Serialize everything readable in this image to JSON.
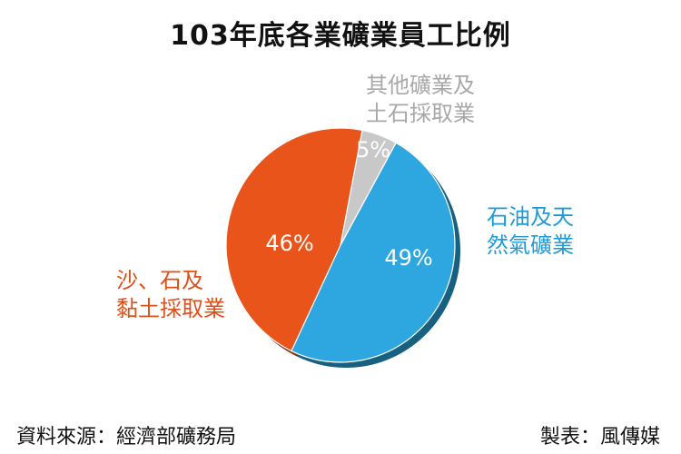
{
  "chart_data": {
    "type": "pie",
    "title": "103年底各業礦業員工比例",
    "slices": [
      {
        "label_lines": [
          "石油及天",
          "然氣礦業"
        ],
        "value": 49,
        "value_label": "49%",
        "color": "#2ea6e0",
        "edge_color": "#17607f"
      },
      {
        "label_lines": [
          "沙、石及",
          "黏土採取業"
        ],
        "value": 46,
        "value_label": "46%",
        "color": "#e8541a",
        "edge_color": "#8a2f0e"
      },
      {
        "label_lines": [
          "其他礦業及",
          "土石採取業"
        ],
        "value": 5,
        "value_label": "5%",
        "color": "#c8c8c8",
        "edge_color": "#8d8d8d"
      }
    ]
  },
  "footer": {
    "source": "資料來源：經濟部礦務局",
    "made_by": "製表：風傳媒"
  }
}
